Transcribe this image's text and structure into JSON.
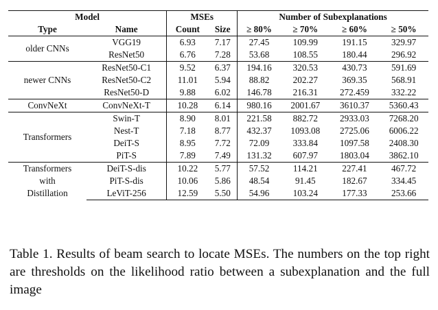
{
  "header": {
    "model": "Model",
    "mses": "MSEs",
    "num_sub": "Number of Subexplanations",
    "type": "Type",
    "name": "Name",
    "count": "Count",
    "size": "Size",
    "t80": "≥ 80%",
    "t70": "≥ 70%",
    "t60": "≥ 60%",
    "t50": "≥ 50%"
  },
  "groups": [
    {
      "type_lines": [
        "older CNNs"
      ],
      "rows": [
        {
          "name": "VGG19",
          "count": "6.93",
          "size": "7.17",
          "t80": "27.45",
          "t70": "109.99",
          "t60": "191.15",
          "t50": "329.97"
        },
        {
          "name": "ResNet50",
          "count": "6.76",
          "size": "7.28",
          "t80": "53.68",
          "t70": "108.55",
          "t60": "180.44",
          "t50": "296.92"
        }
      ]
    },
    {
      "type_lines": [
        "newer CNNs"
      ],
      "rows": [
        {
          "name": "ResNet50-C1",
          "count": "9.52",
          "size": "6.37",
          "t80": "194.16",
          "t70": "320.53",
          "t60": "430.73",
          "t50": "591.69"
        },
        {
          "name": "ResNet50-C2",
          "count": "11.01",
          "size": "5.94",
          "t80": "88.82",
          "t70": "202.27",
          "t60": "369.35",
          "t50": "568.91"
        },
        {
          "name": "ResNet50-D",
          "count": "9.88",
          "size": "6.02",
          "t80": "146.78",
          "t70": "216.31",
          "t60": "272.459",
          "t50": "332.22"
        }
      ]
    },
    {
      "type_lines": [
        "ConvNeXt"
      ],
      "rows": [
        {
          "name": "ConvNeXt-T",
          "count": "10.28",
          "size": "6.14",
          "t80": "980.16",
          "t70": "2001.67",
          "t60": "3610.37",
          "t50": "5360.43"
        }
      ]
    },
    {
      "type_lines": [
        "Transformers"
      ],
      "rows": [
        {
          "name": "Swin-T",
          "count": "8.90",
          "size": "8.01",
          "t80": "221.58",
          "t70": "882.72",
          "t60": "2933.03",
          "t50": "7268.20"
        },
        {
          "name": "Nest-T",
          "count": "7.18",
          "size": "8.77",
          "t80": "432.37",
          "t70": "1093.08",
          "t60": "2725.06",
          "t50": "6006.22"
        },
        {
          "name": "DeiT-S",
          "count": "8.95",
          "size": "7.72",
          "t80": "72.09",
          "t70": "333.84",
          "t60": "1097.58",
          "t50": "2408.30"
        },
        {
          "name": "PiT-S",
          "count": "7.89",
          "size": "7.49",
          "t80": "131.32",
          "t70": "607.97",
          "t60": "1803.04",
          "t50": "3862.10"
        }
      ]
    },
    {
      "type_lines": [
        "Transformers",
        "with",
        "Distillation"
      ],
      "rows": [
        {
          "name": "DeiT-S-dis",
          "count": "10.22",
          "size": "5.77",
          "t80": "57.52",
          "t70": "114.21",
          "t60": "227.41",
          "t50": "467.72"
        },
        {
          "name": "PiT-S-dis",
          "count": "10.06",
          "size": "5.86",
          "t80": "48.54",
          "t70": "91.45",
          "t60": "182.67",
          "t50": "334.45"
        },
        {
          "name": "LeViT-256",
          "count": "12.59",
          "size": "5.50",
          "t80": "54.96",
          "t70": "103.24",
          "t60": "177.33",
          "t50": "253.66"
        }
      ]
    }
  ],
  "caption": "Table 1. Results of beam search to locate MSEs. The numbers on the top right are thresholds on the likelihood ratio between a subexplanation and the full image"
}
